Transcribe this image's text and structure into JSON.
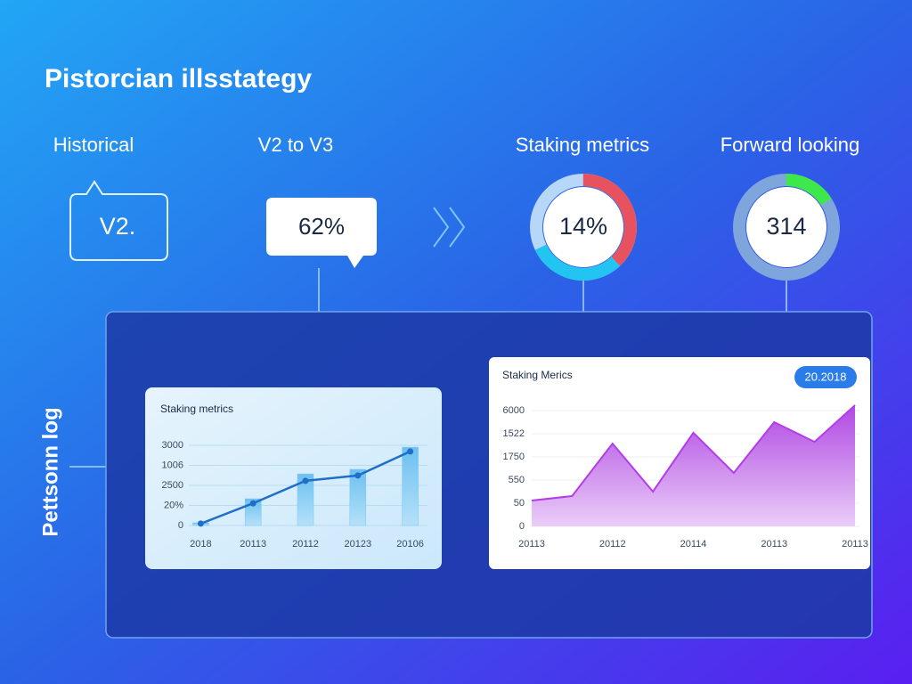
{
  "header": {
    "title": "Pistorcian illsstategy"
  },
  "stages": [
    {
      "label": "Historical",
      "value": "V2."
    },
    {
      "label": "V2 to V3",
      "value": "62%"
    },
    {
      "label": "Staking metrics",
      "value": "14%"
    },
    {
      "label": "Forward looking",
      "value": "314"
    }
  ],
  "side_label": "Pettsonn log",
  "chart_data": [
    {
      "type": "bar",
      "title": "Staking metrics",
      "categories": [
        "2018",
        "20113",
        "20112",
        "20123",
        "20106"
      ],
      "series": [
        {
          "type": "bar",
          "color": "#7cc6f2",
          "values": [
            100,
            1000,
            1930,
            2100,
            2930
          ]
        },
        {
          "type": "line",
          "color": "#1f6fc8",
          "values": [
            70,
            830,
            1670,
            1870,
            2770
          ]
        }
      ],
      "ylim": [
        0,
        3000
      ],
      "yticks": [
        0,
        {
          "value": 750,
          "label": "20%"
        },
        {
          "value": 1500,
          "label": "2500"
        },
        {
          "value": 2250,
          "label": "1006"
        },
        3000
      ],
      "grid": true
    },
    {
      "type": "area",
      "title": "Staking Merics",
      "badge": "20.2018",
      "color": "#b43ce6",
      "categories": [
        "20113",
        null,
        "20112",
        null,
        "20114",
        null,
        "20113",
        null,
        "20113"
      ],
      "values": [
        1340,
        1570,
        4290,
        1800,
        4850,
        2770,
        5400,
        4380,
        6280
      ],
      "ylim": [
        0,
        6000
      ],
      "yticks": [
        0,
        {
          "value": 1200,
          "label": "50"
        },
        {
          "value": 2400,
          "label": "550"
        },
        {
          "value": 3600,
          "label": "1750"
        },
        {
          "value": 4800,
          "label": "1522"
        },
        6000
      ],
      "grid": true
    }
  ]
}
